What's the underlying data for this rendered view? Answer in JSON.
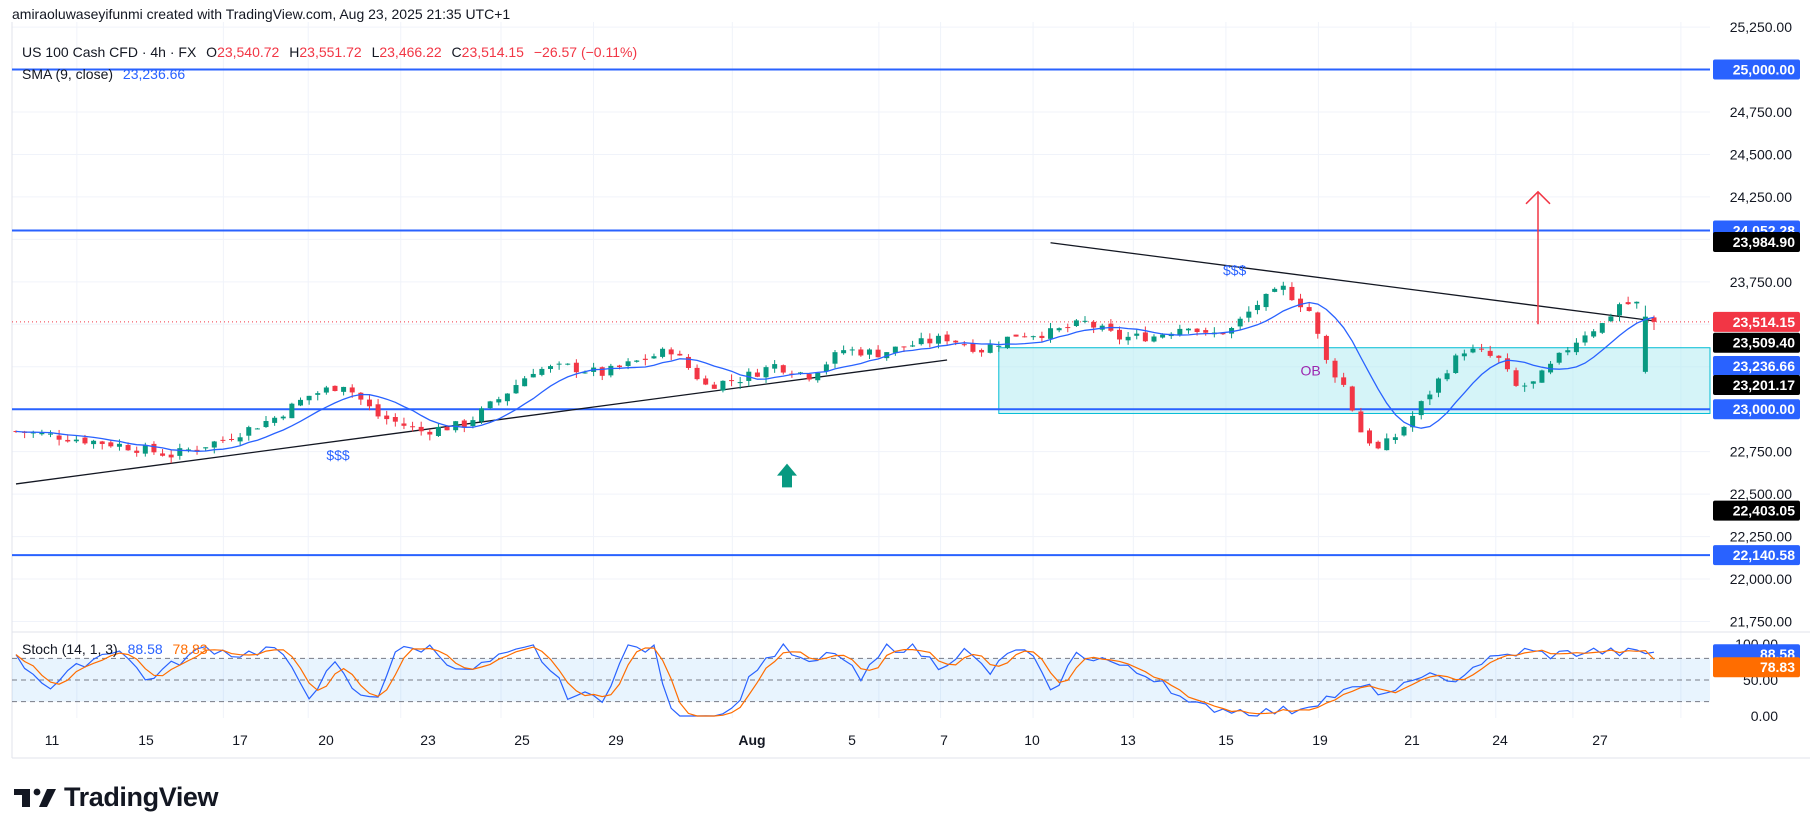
{
  "attribution": "amiraoluwaseyifunmi created with TradingView.com, Aug 23, 2025 21:35 UTC+1",
  "legend": {
    "symbol": "US 100 Cash CFD · 4h · FX",
    "o_label": "O",
    "o": "23,540.72",
    "h_label": "H",
    "h": "23,551.72",
    "l_label": "L",
    "l": "23,466.22",
    "c_label": "C",
    "c": "23,514.15",
    "change": "−26.57 (−0.11%)",
    "sma_label": "SMA (9, close)",
    "sma_value": "23,236.66",
    "stoch_label": "Stoch (14, 1, 3)",
    "stoch_k": "88.58",
    "stoch_d": "78.83"
  },
  "brand": "TradingView",
  "colors": {
    "up": "#089981",
    "down": "#f23645",
    "level": "#2962ff",
    "sma": "#2962ff",
    "stoch_d": "#ff6d00",
    "zone": "#b2ebf2",
    "zone_border": "#00bcd4"
  },
  "chart_data": {
    "type": "candlestick",
    "symbol": "US 100 Cash CFD",
    "timeframe": "4h",
    "x_ticks": [
      "11",
      "15",
      "17",
      "20",
      "23",
      "25",
      "29",
      "Aug",
      "5",
      "7",
      "10",
      "13",
      "15",
      "19",
      "21",
      "24",
      "27"
    ],
    "y_ticks": [
      21750,
      22000,
      22250,
      22500,
      22750,
      23000,
      23250,
      23500,
      23750,
      24000,
      24250,
      24500,
      24750,
      25000,
      25250
    ],
    "y_tick_labels": [
      "21,750.00",
      "22,000.00",
      "22,250.00",
      "22,500.00",
      "22,750.00",
      "23,000.00",
      "23,250.00",
      "23,500.00",
      "23,750.00",
      "24,000.00",
      "24,250.00",
      "24,500.00",
      "24,750.00",
      "25,000.00",
      "25,250.00"
    ],
    "ylim": [
      21700,
      25280
    ],
    "x_count": 191,
    "path_points": [
      [
        0,
        22870
      ],
      [
        5,
        22840
      ],
      [
        12,
        22790
      ],
      [
        18,
        22730
      ],
      [
        24,
        22820
      ],
      [
        30,
        22950
      ],
      [
        34,
        23080
      ],
      [
        38,
        23150
      ],
      [
        42,
        22960
      ],
      [
        47,
        22870
      ],
      [
        52,
        22910
      ],
      [
        56,
        23060
      ],
      [
        60,
        23230
      ],
      [
        64,
        23250
      ],
      [
        68,
        23210
      ],
      [
        72,
        23280
      ],
      [
        76,
        23350
      ],
      [
        80,
        23140
      ],
      [
        84,
        23180
      ],
      [
        88,
        23260
      ],
      [
        92,
        23200
      ],
      [
        96,
        23350
      ],
      [
        100,
        23330
      ],
      [
        104,
        23380
      ],
      [
        108,
        23420
      ],
      [
        112,
        23350
      ],
      [
        116,
        23440
      ],
      [
        120,
        23450
      ],
      [
        124,
        23510
      ],
      [
        128,
        23420
      ],
      [
        132,
        23430
      ],
      [
        136,
        23500
      ],
      [
        138,
        23430
      ],
      [
        141,
        23470
      ],
      [
        144,
        23620
      ],
      [
        147,
        23710
      ],
      [
        150,
        23580
      ],
      [
        152,
        23280
      ],
      [
        154,
        23140
      ],
      [
        156,
        22870
      ],
      [
        158,
        22760
      ],
      [
        160,
        22840
      ],
      [
        162,
        22960
      ],
      [
        164,
        23100
      ],
      [
        166,
        23240
      ],
      [
        168,
        23350
      ],
      [
        170,
        23330
      ],
      [
        172,
        23290
      ],
      [
        174,
        23130
      ],
      [
        176,
        23150
      ],
      [
        178,
        23250
      ],
      [
        180,
        23360
      ],
      [
        182,
        23450
      ],
      [
        184,
        23500
      ],
      [
        186,
        23620
      ],
      [
        188,
        23620
      ]
    ],
    "candle_count": 191,
    "last": {
      "open": 23540.72,
      "high": 23551.72,
      "low": 23466.22,
      "close": 23514.15,
      "change": -26.57,
      "change_pct": -0.11
    },
    "sma": {
      "period": 9,
      "last": 23236.66
    },
    "levels": [
      {
        "price": 25000.0,
        "label": "25,000.00"
      },
      {
        "price": 24052.28,
        "label": "24,052.28"
      },
      {
        "price": 23000.0,
        "label": "23,000.00"
      },
      {
        "price": 22140.58,
        "label": "22,140.58"
      }
    ],
    "price_tags": [
      {
        "price": 23984.9,
        "label": "23,984.90",
        "style": "black"
      },
      {
        "price": 23514.15,
        "label": "23,514.15",
        "style": "red"
      },
      {
        "price": 23509.4,
        "label": "23,509.40",
        "style": "black"
      },
      {
        "price": 23236.66,
        "label": "23,236.66",
        "style": "blue"
      },
      {
        "price": 23201.17,
        "label": "23,201.17",
        "style": "black"
      },
      {
        "price": 22403.05,
        "label": "22,403.05",
        "style": "black"
      }
    ],
    "zone": {
      "top": 23362,
      "bottom": 22975
    },
    "trendlines": [
      {
        "from": [
          0,
          22560
        ],
        "to": [
          108,
          23290
        ]
      },
      {
        "from": [
          120,
          23980
        ],
        "to": [
          190,
          23520
        ]
      }
    ],
    "annotations": [
      {
        "text": "$$$",
        "at": [
          36,
          22700
        ]
      },
      {
        "text": "$$$",
        "at": [
          140,
          23790
        ]
      },
      {
        "text": "OB",
        "at": [
          149,
          23200
        ]
      }
    ],
    "arrows": [
      {
        "direction": "up",
        "color": "#f23645",
        "from": 23500,
        "to": 24280
      },
      {
        "direction": "up",
        "color": "#089981",
        "from": 22540,
        "to": 22680
      }
    ],
    "stochastic": {
      "k_period": 14,
      "k_smoothing": 1,
      "d_period": 3,
      "k_last": 88.58,
      "d_last": 78.83,
      "levels": [
        80,
        50,
        20
      ],
      "y_ticks": [
        0,
        50,
        100
      ],
      "y_tick_labels": [
        "0.00",
        "50.00",
        "100.00"
      ],
      "path_points": [
        [
          0,
          80
        ],
        [
          4,
          40
        ],
        [
          8,
          75
        ],
        [
          12,
          95
        ],
        [
          15,
          50
        ],
        [
          18,
          70
        ],
        [
          22,
          95
        ],
        [
          26,
          85
        ],
        [
          30,
          95
        ],
        [
          34,
          30
        ],
        [
          37,
          70
        ],
        [
          40,
          25
        ],
        [
          42,
          30
        ],
        [
          44,
          90
        ],
        [
          48,
          95
        ],
        [
          52,
          60
        ],
        [
          56,
          80
        ],
        [
          60,
          95
        ],
        [
          64,
          30
        ],
        [
          68,
          25
        ],
        [
          71,
          95
        ],
        [
          74,
          92
        ],
        [
          76,
          5
        ],
        [
          80,
          0
        ],
        [
          83,
          8
        ],
        [
          86,
          70
        ],
        [
          89,
          95
        ],
        [
          92,
          70
        ],
        [
          95,
          90
        ],
        [
          98,
          50
        ],
        [
          101,
          95
        ],
        [
          104,
          95
        ],
        [
          107,
          70
        ],
        [
          110,
          90
        ],
        [
          113,
          60
        ],
        [
          116,
          95
        ],
        [
          118,
          80
        ],
        [
          120,
          30
        ],
        [
          123,
          85
        ],
        [
          126,
          80
        ],
        [
          130,
          60
        ],
        [
          133,
          50
        ],
        [
          136,
          15
        ],
        [
          140,
          10
        ],
        [
          144,
          5
        ],
        [
          148,
          8
        ],
        [
          152,
          25
        ],
        [
          156,
          40
        ],
        [
          160,
          30
        ],
        [
          163,
          60
        ],
        [
          166,
          45
        ],
        [
          170,
          75
        ],
        [
          175,
          90
        ],
        [
          178,
          85
        ],
        [
          183,
          90
        ],
        [
          186,
          88
        ]
      ]
    }
  }
}
